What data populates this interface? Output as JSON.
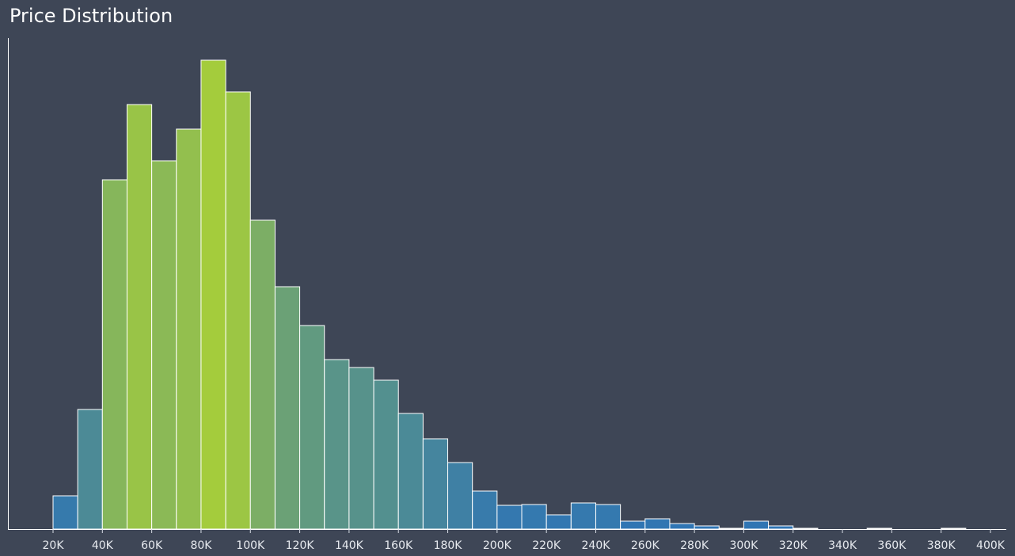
{
  "title": "Price Distribution",
  "colors": {
    "background": "#3e4656",
    "axis": "#ffffff",
    "text": "#e6e9ee",
    "bar_outline": "#ffffff",
    "low": "#2e74b5",
    "high": "#a4cc3c"
  },
  "chart_data": {
    "type": "bar",
    "title": "Price Distribution",
    "xlabel": "",
    "ylabel": "",
    "x_tick_labels": [
      "20K",
      "40K",
      "60K",
      "80K",
      "100K",
      "120K",
      "140K",
      "160K",
      "180K",
      "200K",
      "220K",
      "240K",
      "260K",
      "280K",
      "300K",
      "320K",
      "340K",
      "360K",
      "380K",
      "400K"
    ],
    "x_ticks": [
      20000,
      40000,
      60000,
      80000,
      100000,
      120000,
      140000,
      160000,
      180000,
      200000,
      220000,
      240000,
      260000,
      280000,
      300000,
      320000,
      340000,
      360000,
      380000,
      400000
    ],
    "xlim": [
      20000,
      400000
    ],
    "bin_width": 10000,
    "bin_starts": [
      20000,
      30000,
      40000,
      50000,
      60000,
      70000,
      80000,
      90000,
      100000,
      110000,
      120000,
      130000,
      140000,
      150000,
      160000,
      170000,
      180000,
      190000,
      200000,
      210000,
      220000,
      230000,
      240000,
      250000,
      260000,
      270000,
      280000,
      290000,
      300000,
      310000,
      320000,
      330000,
      340000,
      350000,
      360000,
      370000,
      380000,
      390000
    ],
    "values": [
      42,
      151,
      441,
      536,
      465,
      505,
      592,
      552,
      390,
      306,
      257,
      214,
      204,
      188,
      146,
      114,
      84,
      48,
      30,
      31,
      18,
      33,
      31,
      10,
      13,
      7,
      4,
      1,
      10,
      4,
      1,
      0,
      0,
      1,
      0,
      0,
      1,
      0
    ],
    "ylim": [
      0,
      620
    ],
    "y_axis_labels": "none",
    "grid": false,
    "legend": "none",
    "color_encoding": "bar height (blue low to green high)"
  }
}
